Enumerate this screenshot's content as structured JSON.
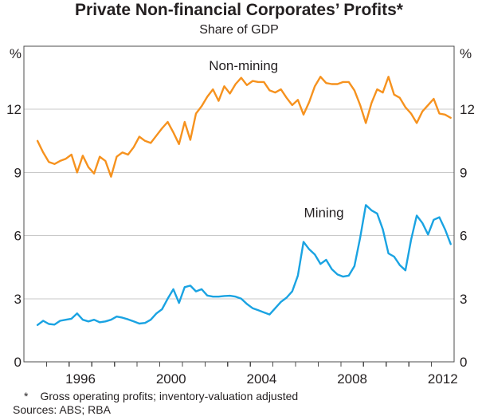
{
  "title": "Private Non-financial Corporates’ Profits*",
  "subtitle": "Share of GDP",
  "footnote_marker": "*",
  "footnote_text": "Gross operating profits; inventory-valuation adjusted",
  "sources_text": "Sources: ABS; RBA",
  "colors": {
    "non_mining_line": "#f6921e",
    "mining_line": "#1aa3e2",
    "gridline": "#c9c9c9",
    "axis_frame": "#4d4d4d",
    "text": "#231f20"
  },
  "chart_data": {
    "type": "line",
    "title": "Private Non-financial Corporates’ Profits*",
    "subtitle": "Share of GDP",
    "unit_left": "%",
    "unit_right": "%",
    "ylim": [
      0,
      15
    ],
    "yticks": [
      0,
      3,
      6,
      9,
      12
    ],
    "gridlines": [
      3,
      6,
      9,
      12
    ],
    "grid_on": true,
    "xlim": [
      1994,
      2013
    ],
    "x_year_tick_interval": 1,
    "xtick_labels": [
      {
        "label": "1996",
        "at": 1996.5
      },
      {
        "label": "2000",
        "at": 2000.5
      },
      {
        "label": "2004",
        "at": 2004.5
      },
      {
        "label": "2008",
        "at": 2008.5
      },
      {
        "label": "2012",
        "at": 2012.5
      }
    ],
    "x_start_year": 1994.6,
    "x_step_years": 0.25,
    "legend_position": "inline-labels",
    "series": [
      {
        "name": "Non-mining",
        "color": "#f6921e",
        "label": {
          "text": "Non-mining",
          "x": 2003.7,
          "y": 14.1
        },
        "values": [
          10.5,
          9.95,
          9.5,
          9.4,
          9.55,
          9.65,
          9.85,
          9.0,
          9.8,
          9.25,
          8.95,
          9.75,
          9.55,
          8.8,
          9.75,
          9.95,
          9.85,
          10.2,
          10.7,
          10.5,
          10.4,
          10.75,
          11.1,
          11.4,
          10.9,
          10.35,
          11.4,
          10.55,
          11.8,
          12.15,
          12.6,
          12.95,
          12.4,
          13.1,
          12.75,
          13.2,
          13.5,
          13.15,
          13.35,
          13.3,
          13.3,
          12.9,
          12.8,
          12.95,
          12.55,
          12.2,
          12.45,
          11.75,
          12.35,
          13.1,
          13.55,
          13.25,
          13.2,
          13.2,
          13.3,
          13.3,
          12.9,
          12.2,
          11.35,
          12.3,
          12.95,
          12.8,
          13.55,
          12.7,
          12.55,
          12.1,
          11.8,
          11.35,
          11.9,
          12.2,
          12.5,
          11.8,
          11.75,
          11.6
        ]
      },
      {
        "name": "Mining",
        "color": "#1aa3e2",
        "label": {
          "text": "Mining",
          "x": 2007.25,
          "y": 7.1
        },
        "values": [
          1.75,
          1.95,
          1.8,
          1.77,
          1.95,
          2.0,
          2.05,
          2.3,
          2.0,
          1.92,
          2.0,
          1.88,
          1.92,
          2.0,
          2.15,
          2.1,
          2.02,
          1.92,
          1.82,
          1.85,
          2.0,
          2.3,
          2.5,
          3.0,
          3.45,
          2.8,
          3.55,
          3.62,
          3.35,
          3.45,
          3.15,
          3.1,
          3.1,
          3.13,
          3.14,
          3.1,
          3.0,
          2.75,
          2.55,
          2.45,
          2.35,
          2.25,
          2.55,
          2.85,
          3.05,
          3.35,
          4.1,
          5.7,
          5.35,
          5.1,
          4.65,
          4.85,
          4.4,
          4.15,
          4.05,
          4.1,
          4.55,
          5.9,
          7.45,
          7.2,
          7.05,
          6.3,
          5.15,
          5.0,
          4.6,
          4.35,
          5.8,
          6.95,
          6.6,
          6.05,
          6.75,
          6.87,
          6.3,
          5.6
        ]
      }
    ]
  }
}
